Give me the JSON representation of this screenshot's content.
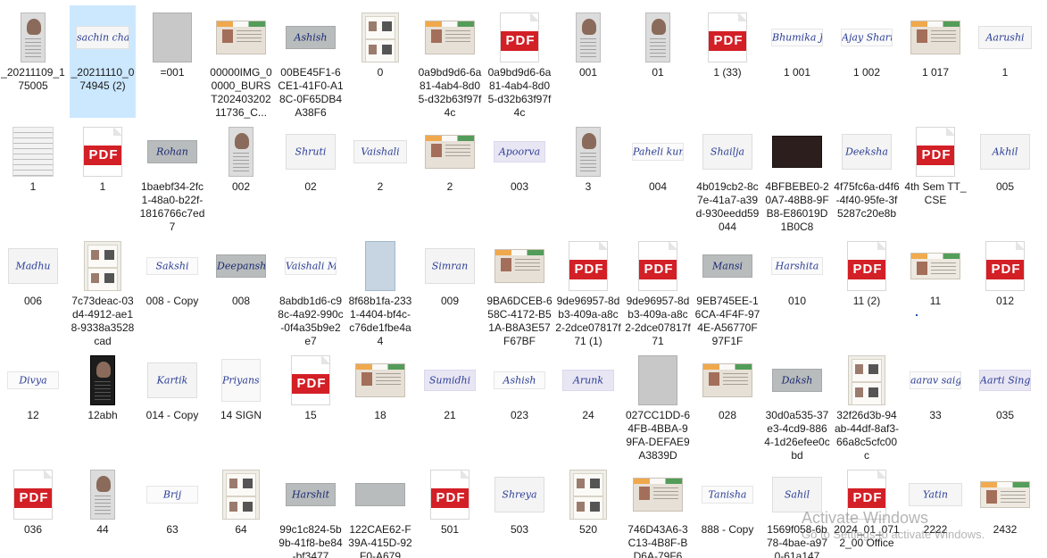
{
  "files": [
    {
      "label": "_20211109_175005",
      "kind": "photo",
      "selected": false
    },
    {
      "label": "_20211110_074945 (2)",
      "kind": "sig",
      "thumb_text": "sachin chaudhary",
      "selected": true
    },
    {
      "label": "=001",
      "kind": "gray",
      "selected": false
    },
    {
      "label": "00000IMG_00000_BURST20240320211736_C...",
      "kind": "card",
      "selected": false
    },
    {
      "label": "00BE45F1-6CE1-41F0-A18C-0F65DB4A38F6",
      "kind": "siggray",
      "thumb_text": "Ashish",
      "selected": false
    },
    {
      "label": "0",
      "kind": "idpair",
      "selected": false
    },
    {
      "label": "0a9bd9d6-6a81-4ab4-8d05-d32b63f97f4c",
      "kind": "card",
      "selected": false
    },
    {
      "label": "0a9bd9d6-6a81-4ab4-8d05-d32b63f97f4c",
      "kind": "pdf",
      "selected": false
    },
    {
      "label": "001",
      "kind": "photo",
      "selected": false
    },
    {
      "label": "01",
      "kind": "photo",
      "selected": false
    },
    {
      "label": "1 (33)",
      "kind": "pdf",
      "selected": false
    },
    {
      "label": "1 001",
      "kind": "sigsm",
      "thumb_text": "Bhumika Jaiswal",
      "selected": false
    },
    {
      "label": "1 002",
      "kind": "sigsm",
      "thumb_text": "Ajay Sharma",
      "selected": false
    },
    {
      "label": "1 017",
      "kind": "card",
      "selected": false
    },
    {
      "label": "1",
      "kind": "sig",
      "thumb_text": "Aarushi",
      "selected": false
    },
    {
      "label": "1",
      "kind": "linedpaper",
      "selected": false
    },
    {
      "label": "1",
      "kind": "pdf",
      "selected": false
    },
    {
      "label": "1baebf34-2fc1-48a0-b22f-1816766c7ed7",
      "kind": "siggray",
      "thumb_text": "Rohan",
      "selected": false
    },
    {
      "label": "002",
      "kind": "photo",
      "selected": false
    },
    {
      "label": "02",
      "kind": "sigpaper",
      "thumb_text": "Shruti",
      "selected": false
    },
    {
      "label": "2",
      "kind": "sig",
      "thumb_text": "Vaishali",
      "selected": false
    },
    {
      "label": "2",
      "kind": "card",
      "selected": false
    },
    {
      "label": "003",
      "kind": "sigblue",
      "thumb_text": "Apoorva",
      "selected": false
    },
    {
      "label": "3",
      "kind": "photo",
      "selected": false
    },
    {
      "label": "004",
      "kind": "sigsm",
      "thumb_text": "Paheli kumari",
      "selected": false
    },
    {
      "label": "4b019cb2-8c7e-41a7-a39d-930eedd59044",
      "kind": "sigpaper",
      "thumb_text": "Shailja",
      "selected": false
    },
    {
      "label": "4BFBEBE0-20A7-48B8-9FB8-E86019D1B0C8",
      "kind": "sigdark",
      "thumb_text": "",
      "selected": false
    },
    {
      "label": "4f75fc6a-d4f6-4f40-95fe-3f5287c20e8b",
      "kind": "sigpaper",
      "thumb_text": "Deeksha",
      "selected": false
    },
    {
      "label": "4th Sem TT_CSE",
      "kind": "pdf",
      "selected": false
    },
    {
      "label": "005",
      "kind": "sigpaper",
      "thumb_text": "Akhil",
      "selected": false
    },
    {
      "label": "006",
      "kind": "sigpaper",
      "thumb_text": "Madhu",
      "selected": false
    },
    {
      "label": "7c73deac-03d4-4912-ae18-9338a3528cad",
      "kind": "idpair",
      "selected": false
    },
    {
      "label": "008 - Copy",
      "kind": "sigsm",
      "thumb_text": "Sakshi",
      "selected": false
    },
    {
      "label": "008",
      "kind": "siggray",
      "thumb_text": "Deepansh",
      "selected": false
    },
    {
      "label": "8abdb1d6-c98c-4a92-990c-0f4a35b9e2e7",
      "kind": "sigsm",
      "thumb_text": "Vaishali Maurya",
      "selected": false
    },
    {
      "label": "8f68b1fa-2331-4404-bf4c-c76de1fbe4a4",
      "kind": "blue",
      "selected": false
    },
    {
      "label": "009",
      "kind": "sigpaper",
      "thumb_text": "Simran",
      "selected": false
    },
    {
      "label": "9BA6DCEB-658C-4172-B51A-B8A3E57F67BF",
      "kind": "card",
      "selected": false
    },
    {
      "label": "9de96957-8db3-409a-a8c2-2dce07817f71 (1)",
      "kind": "pdf",
      "selected": false
    },
    {
      "label": "9de96957-8db3-409a-a8c2-2dce07817f71",
      "kind": "pdf",
      "selected": false
    },
    {
      "label": "9EB745EE-16CA-4F4F-974E-A56770F97F1F",
      "kind": "siggray",
      "thumb_text": "Mansi",
      "selected": false
    },
    {
      "label": "010",
      "kind": "sigsm",
      "thumb_text": "Harshita",
      "selected": false
    },
    {
      "label": "11 (2)",
      "kind": "pdf",
      "selected": false
    },
    {
      "label": "11",
      "kind": "cardwide",
      "selected": false
    },
    {
      "label": "012",
      "kind": "pdf",
      "selected": false
    },
    {
      "label": "12",
      "kind": "sigsm",
      "thumb_text": "Divya",
      "selected": false
    },
    {
      "label": "12abh",
      "kind": "photodark",
      "selected": false
    },
    {
      "label": "014 - Copy",
      "kind": "sigpaper",
      "thumb_text": "Kartik",
      "selected": false
    },
    {
      "label": "14 SIGN",
      "kind": "scribble",
      "thumb_text": "Priyanshi",
      "selected": false
    },
    {
      "label": "15",
      "kind": "pdf",
      "selected": false
    },
    {
      "label": "18",
      "kind": "card",
      "selected": false
    },
    {
      "label": "21",
      "kind": "sigblue",
      "thumb_text": "Sumidhi",
      "selected": false
    },
    {
      "label": "023",
      "kind": "sigsm",
      "thumb_text": "Ashish",
      "selected": false
    },
    {
      "label": "24",
      "kind": "sigblue",
      "thumb_text": "Arunk",
      "selected": false
    },
    {
      "label": "027CC1DD-64FB-4BBA-99FA-DEFAE9A3839D",
      "kind": "gray",
      "selected": false
    },
    {
      "label": "028",
      "kind": "card",
      "selected": false
    },
    {
      "label": "30d0a535-37e3-4cd9-8864-1d26efee0cbd",
      "kind": "siggray",
      "thumb_text": "Daksh",
      "selected": false
    },
    {
      "label": "32f26d3b-94ab-44df-8af3-66a8c5cfc00c",
      "kind": "idpair",
      "selected": false
    },
    {
      "label": "33",
      "kind": "sigsm",
      "thumb_text": "aarav saigal",
      "selected": false
    },
    {
      "label": "035",
      "kind": "sigblue",
      "thumb_text": "Aarti Singh",
      "selected": false
    },
    {
      "label": "036",
      "kind": "pdf",
      "selected": false
    },
    {
      "label": "44",
      "kind": "photo",
      "selected": false
    },
    {
      "label": "63",
      "kind": "sigsm",
      "thumb_text": "Brij",
      "selected": false
    },
    {
      "label": "64",
      "kind": "idpair",
      "selected": false
    },
    {
      "label": "99c1c824-5b9b-41f8-be84-bf3477",
      "kind": "siggray",
      "thumb_text": "Harshit",
      "selected": false
    },
    {
      "label": "122CAE62-F39A-415D-92F0-A679",
      "kind": "siggray",
      "thumb_text": "",
      "selected": false
    },
    {
      "label": "501",
      "kind": "pdf",
      "selected": false
    },
    {
      "label": "503",
      "kind": "sigpaper",
      "thumb_text": "Shreya",
      "selected": false
    },
    {
      "label": "520",
      "kind": "idpair",
      "selected": false
    },
    {
      "label": "746D43A6-3C13-4B8F-BD6A-79F6",
      "kind": "card",
      "selected": false
    },
    {
      "label": "888 - Copy",
      "kind": "sigsm",
      "thumb_text": "Tanisha",
      "selected": false
    },
    {
      "label": "1569f058-6b78-4bae-a970-61a147",
      "kind": "sigpaper",
      "thumb_text": "Sahil",
      "selected": false
    },
    {
      "label": "2024_01_0712_00 Office",
      "kind": "pdf",
      "selected": false
    },
    {
      "label": "2222",
      "kind": "sig",
      "thumb_text": "Yatin",
      "selected": false
    },
    {
      "label": "2432",
      "kind": "cardwide",
      "selected": false
    }
  ],
  "pdf_badge_text": "PDF",
  "watermark": {
    "title": "Activate Windows",
    "subtitle": "Go to Settings to activate Windows."
  },
  "colors": {
    "selected_bg": "#cce8ff",
    "pdf_red": "#d31f26",
    "label_text": "#1a1a1a"
  }
}
